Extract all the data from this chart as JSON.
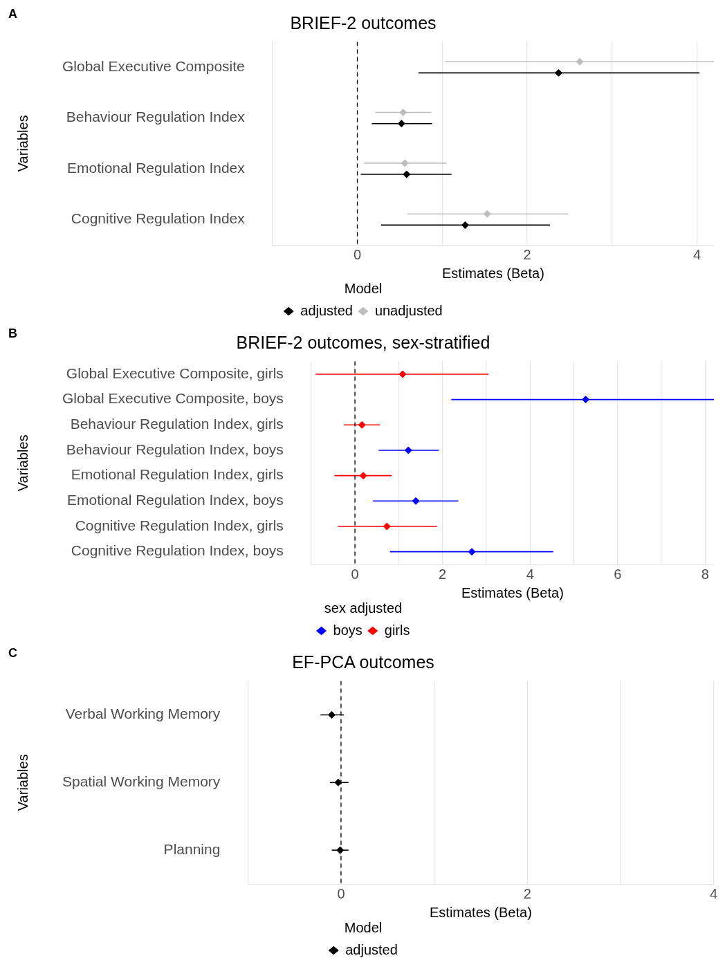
{
  "chart_data": [
    {
      "type": "scatter",
      "title": "BRIEF-2 outcomes",
      "xlabel": "Estimates (Beta)",
      "ylabel": "Variables",
      "legend_title": "Model",
      "annotations": [
        "A"
      ],
      "orientation": "horizontal",
      "categories": [
        "Global Executive Composite",
        "Behaviour Regulation Index",
        "Emotional Regulation Index",
        "Cognitive Regulation Index"
      ],
      "series": [
        {
          "name": "adjusted",
          "color": "#000000",
          "values": [
            2.37,
            0.52,
            0.58,
            1.27
          ],
          "errors": [
            [
              0.72,
              4.03
            ],
            [
              0.17,
              0.88
            ],
            [
              0.04,
              1.11
            ],
            [
              0.28,
              2.27
            ]
          ]
        },
        {
          "name": "unadjusted",
          "color": "#bdbdbd",
          "values": [
            2.62,
            0.54,
            0.56,
            1.53
          ],
          "errors": [
            [
              1.03,
              4.2
            ],
            [
              0.21,
              0.87
            ],
            [
              0.08,
              1.05
            ],
            [
              0.59,
              2.48
            ]
          ]
        }
      ],
      "xlim": [
        -1,
        4.2
      ],
      "xticks": [
        {
          "value": -1,
          "label": null
        },
        0,
        {
          "value": 1,
          "label": null
        },
        2,
        {
          "value": 3,
          "label": null
        },
        4
      ],
      "grid": "x",
      "legend": "bottom",
      "marker": "diamond",
      "ref_lines": [
        {
          "axis": "x",
          "value": 0,
          "color": "#000000",
          "line_style": "dashed"
        }
      ]
    },
    {
      "type": "scatter",
      "title": "BRIEF-2 outcomes, sex-stratified",
      "xlabel": "Estimates (Beta)",
      "ylabel": "Variables",
      "legend_title": "sex adjusted",
      "annotations": [
        "B"
      ],
      "orientation": "horizontal",
      "categories": [
        "Global Executive Composite, girls",
        "Global Executive Composite, boys",
        "Behaviour Regulation Index, girls",
        "Behaviour Regulation Index, boys",
        "Emotional Regulation Index, girls",
        "Emotional Regulation Index, boys",
        "Cognitive Regulation Index, girls",
        "Cognitive Regulation Index, boys"
      ],
      "series": [
        {
          "name": "boys",
          "color": "#0000ff",
          "values": [
            null,
            5.27,
            null,
            1.22,
            null,
            1.39,
            null,
            2.67
          ],
          "errors": [
            null,
            [
              2.2,
              8.2
            ],
            null,
            [
              0.54,
              1.92
            ],
            null,
            [
              0.41,
              2.36
            ],
            null,
            [
              0.8,
              4.53
            ]
          ]
        },
        {
          "name": "girls",
          "color": "#ff0000",
          "values": [
            1.09,
            null,
            0.16,
            null,
            0.19,
            null,
            0.73,
            null
          ],
          "errors": [
            [
              -0.9,
              3.05
            ],
            null,
            [
              -0.25,
              0.57
            ],
            null,
            [
              -0.47,
              0.84
            ],
            null,
            [
              -0.39,
              1.88
            ],
            null
          ]
        }
      ],
      "xlim": [
        -1,
        8.2
      ],
      "xticks": [
        {
          "value": -1,
          "label": null
        },
        0,
        {
          "value": 1,
          "label": null
        },
        2,
        {
          "value": 3,
          "label": null
        },
        4,
        {
          "value": 5,
          "label": null
        },
        6,
        {
          "value": 7,
          "label": null
        },
        8
      ],
      "grid": "x",
      "legend": "bottom",
      "marker": "diamond",
      "ref_lines": [
        {
          "axis": "x",
          "value": 0,
          "color": "#000000",
          "line_style": "dashed"
        }
      ]
    },
    {
      "type": "scatter",
      "title": "EF-PCA outcomes",
      "xlabel": "Estimates (Beta)",
      "ylabel": "Variables",
      "legend_title": "Model",
      "annotations": [
        "C"
      ],
      "orientation": "horizontal",
      "categories": [
        "Verbal Working Memory",
        "Spatial Working Memory",
        "Planning"
      ],
      "series": [
        {
          "name": "adjusted",
          "color": "#000000",
          "values": [
            -0.1,
            -0.03,
            -0.01
          ],
          "errors": [
            [
              -0.22,
              0.03
            ],
            [
              -0.12,
              0.08
            ],
            [
              -0.1,
              0.08
            ]
          ]
        }
      ],
      "xlim": [
        -1,
        4
      ],
      "xticks": [
        {
          "value": -1,
          "label": null
        },
        0,
        {
          "value": 1,
          "label": null
        },
        2,
        {
          "value": 3,
          "label": null
        },
        4
      ],
      "grid": "x",
      "legend": "bottom",
      "marker": "diamond",
      "ref_lines": [
        {
          "axis": "x",
          "value": 0,
          "color": "#000000",
          "line_style": "dashed"
        }
      ]
    }
  ]
}
